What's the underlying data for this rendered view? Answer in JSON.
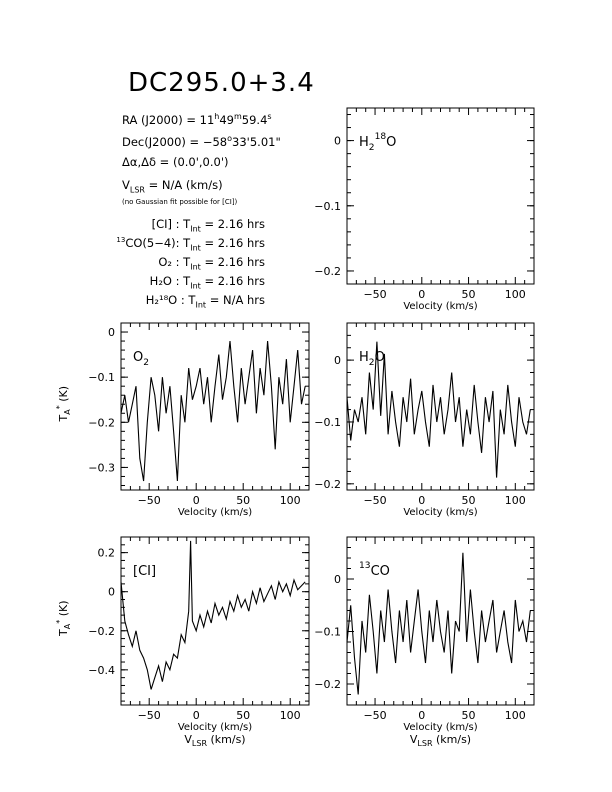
{
  "title": "DC295.0+3.4",
  "info": {
    "ra_label": "RA (J2000) =",
    "ra_h": "11",
    "ra_m": "49",
    "ra_s": "59.4",
    "dec_label": "Dec(J2000) =",
    "dec_d": "−58",
    "dec_m": "33",
    "dec_s": "5.01",
    "offset_label": "Δα,Δδ = (0.0',0.0')",
    "vlsr_value": "= N/A (km/s)",
    "note": "(no Gaussian fit possible for [CI])",
    "tints": [
      {
        "line": "[CI] :",
        "value": "= 2.16 hrs"
      },
      {
        "line": "CO(5−4):",
        "iso": "13",
        "value": "= 2.16 hrs"
      },
      {
        "line": "O₂ :",
        "value": "= 2.16 hrs"
      },
      {
        "line": "H₂O :",
        "value": "= 2.16 hrs"
      },
      {
        "line": "H₂¹⁸O :",
        "value": "= N/A hrs"
      }
    ]
  },
  "axis_text": {
    "velocity": "Velocity (km/s)",
    "vlsr": "V_LSR (km/s)",
    "ta": "T_A* (K)"
  },
  "chart_data": [
    {
      "id": "h218o",
      "type": "line",
      "label": "H2^18O",
      "xlim": [
        -80,
        120
      ],
      "ylim": [
        -0.22,
        0.05
      ],
      "xticks": [
        -50,
        0,
        50,
        100
      ],
      "yticks": [
        0,
        -0.1,
        -0.2
      ],
      "ytick_labels": [
        "0",
        "−0.1",
        "−0.2"
      ],
      "xlabel": "Velocity (km/s)",
      "ylabel": "",
      "x": [],
      "y": []
    },
    {
      "id": "o2",
      "type": "line",
      "label": "O2",
      "xlim": [
        -80,
        120
      ],
      "ylim": [
        -0.35,
        0.02
      ],
      "xticks": [
        -50,
        0,
        50,
        100
      ],
      "yticks": [
        0,
        -0.1,
        -0.2,
        -0.3
      ],
      "ytick_labels": [
        "0",
        "−0.1",
        "−0.2",
        "−0.3"
      ],
      "xlabel": "Velocity (km/s)",
      "ylabel": "T_A* (K)",
      "x": [
        -80,
        -76,
        -72,
        -68,
        -64,
        -60,
        -56,
        -52,
        -48,
        -44,
        -40,
        -36,
        -32,
        -28,
        -24,
        -20,
        -16,
        -12,
        -8,
        -4,
        0,
        4,
        8,
        12,
        16,
        20,
        24,
        28,
        32,
        36,
        40,
        44,
        48,
        52,
        56,
        60,
        64,
        68,
        72,
        76,
        80,
        84,
        88,
        92,
        96,
        100,
        104,
        108,
        112,
        116
      ],
      "y": [
        -0.18,
        -0.14,
        -0.2,
        -0.16,
        -0.12,
        -0.28,
        -0.33,
        -0.2,
        -0.1,
        -0.14,
        -0.22,
        -0.1,
        -0.18,
        -0.12,
        -0.22,
        -0.33,
        -0.14,
        -0.2,
        -0.08,
        -0.15,
        -0.12,
        -0.08,
        -0.16,
        -0.1,
        -0.2,
        -0.12,
        -0.05,
        -0.15,
        -0.1,
        -0.02,
        -0.12,
        -0.2,
        -0.08,
        -0.16,
        -0.1,
        -0.04,
        -0.18,
        -0.08,
        -0.14,
        -0.02,
        -0.12,
        -0.26,
        -0.1,
        -0.16,
        -0.06,
        -0.2,
        -0.12,
        -0.04,
        -0.16,
        -0.12
      ]
    },
    {
      "id": "h2o",
      "type": "line",
      "label": "H2O",
      "xlim": [
        -80,
        120
      ],
      "ylim": [
        -0.21,
        0.06
      ],
      "xticks": [
        -50,
        0,
        50,
        100
      ],
      "yticks": [
        0,
        -0.1,
        -0.2
      ],
      "ytick_labels": [
        "0",
        "−0.1",
        "−0.2"
      ],
      "xlabel": "Velocity (km/s)",
      "ylabel": "",
      "x": [
        -80,
        -76,
        -72,
        -68,
        -64,
        -60,
        -56,
        -52,
        -48,
        -44,
        -40,
        -36,
        -32,
        -28,
        -24,
        -20,
        -16,
        -12,
        -8,
        -4,
        0,
        4,
        8,
        12,
        16,
        20,
        24,
        28,
        32,
        36,
        40,
        44,
        48,
        52,
        56,
        60,
        64,
        68,
        72,
        76,
        80,
        84,
        88,
        92,
        96,
        100,
        104,
        108,
        112,
        116
      ],
      "y": [
        -0.06,
        -0.13,
        -0.08,
        -0.1,
        -0.06,
        -0.12,
        -0.02,
        -0.08,
        0.03,
        -0.09,
        0.01,
        -0.12,
        -0.05,
        -0.1,
        -0.14,
        -0.06,
        -0.1,
        -0.03,
        -0.12,
        -0.08,
        -0.05,
        -0.1,
        -0.14,
        -0.04,
        -0.1,
        -0.06,
        -0.12,
        -0.08,
        -0.02,
        -0.1,
        -0.06,
        -0.14,
        -0.08,
        -0.12,
        -0.04,
        -0.1,
        -0.15,
        -0.06,
        -0.1,
        -0.05,
        -0.19,
        -0.08,
        -0.12,
        -0.04,
        -0.1,
        -0.14,
        -0.06,
        -0.1,
        -0.12,
        -0.08
      ]
    },
    {
      "id": "ci",
      "type": "line",
      "label": "[CI]",
      "xlim": [
        -80,
        120
      ],
      "ylim": [
        -0.58,
        0.28
      ],
      "xticks": [
        -50,
        0,
        50,
        100
      ],
      "yticks": [
        0.2,
        0,
        -0.2,
        -0.4
      ],
      "ytick_labels": [
        "0.2",
        "0",
        "−0.2",
        "−0.4"
      ],
      "xlabel": "Velocity (km/s)",
      "ylabel": "T_A* (K)",
      "x": [
        -80,
        -76,
        -72,
        -68,
        -64,
        -60,
        -56,
        -52,
        -48,
        -44,
        -40,
        -36,
        -32,
        -28,
        -24,
        -20,
        -16,
        -12,
        -8,
        -6,
        -4,
        0,
        4,
        8,
        12,
        16,
        20,
        24,
        28,
        32,
        36,
        40,
        44,
        48,
        52,
        56,
        60,
        64,
        68,
        72,
        76,
        80,
        84,
        88,
        92,
        96,
        100,
        104,
        108,
        112,
        116
      ],
      "y": [
        0.05,
        -0.15,
        -0.22,
        -0.28,
        -0.2,
        -0.3,
        -0.34,
        -0.4,
        -0.5,
        -0.44,
        -0.38,
        -0.46,
        -0.36,
        -0.4,
        -0.32,
        -0.34,
        -0.22,
        -0.26,
        -0.1,
        0.26,
        -0.15,
        -0.2,
        -0.12,
        -0.18,
        -0.1,
        -0.16,
        -0.06,
        -0.12,
        -0.08,
        -0.14,
        -0.05,
        -0.1,
        -0.02,
        -0.08,
        -0.04,
        -0.1,
        0,
        -0.06,
        0.02,
        -0.05,
        -0.01,
        0.03,
        -0.04,
        0.05,
        0,
        0.04,
        -0.02,
        0.06,
        0.01,
        0.03,
        0.05
      ]
    },
    {
      "id": "13co",
      "type": "line",
      "label": "13CO",
      "xlim": [
        -80,
        120
      ],
      "ylim": [
        -0.24,
        0.08
      ],
      "xticks": [
        -50,
        0,
        50,
        100
      ],
      "yticks": [
        0,
        -0.1,
        -0.2
      ],
      "ytick_labels": [
        "0",
        "−0.1",
        "−0.2"
      ],
      "xlabel": "Velocity (km/s)",
      "ylabel": "",
      "x": [
        -80,
        -76,
        -72,
        -68,
        -64,
        -60,
        -56,
        -52,
        -48,
        -44,
        -40,
        -36,
        -32,
        -28,
        -24,
        -20,
        -16,
        -12,
        -8,
        -4,
        0,
        4,
        8,
        12,
        16,
        20,
        24,
        28,
        32,
        36,
        40,
        44,
        48,
        52,
        56,
        60,
        64,
        68,
        72,
        76,
        80,
        84,
        88,
        92,
        96,
        100,
        104,
        108,
        112,
        116
      ],
      "y": [
        -0.12,
        -0.05,
        -0.15,
        -0.22,
        -0.08,
        -0.14,
        -0.03,
        -0.1,
        -0.18,
        -0.06,
        -0.12,
        -0.02,
        -0.1,
        -0.16,
        -0.06,
        -0.12,
        -0.04,
        -0.14,
        -0.08,
        -0.02,
        -0.1,
        -0.16,
        -0.06,
        -0.12,
        -0.04,
        -0.1,
        -0.14,
        -0.06,
        -0.18,
        -0.08,
        -0.1,
        0.05,
        -0.12,
        -0.02,
        -0.1,
        -0.16,
        -0.06,
        -0.12,
        -0.08,
        -0.04,
        -0.14,
        -0.1,
        -0.06,
        -0.12,
        -0.16,
        -0.04,
        -0.1,
        -0.08,
        -0.12,
        -0.06
      ]
    }
  ]
}
